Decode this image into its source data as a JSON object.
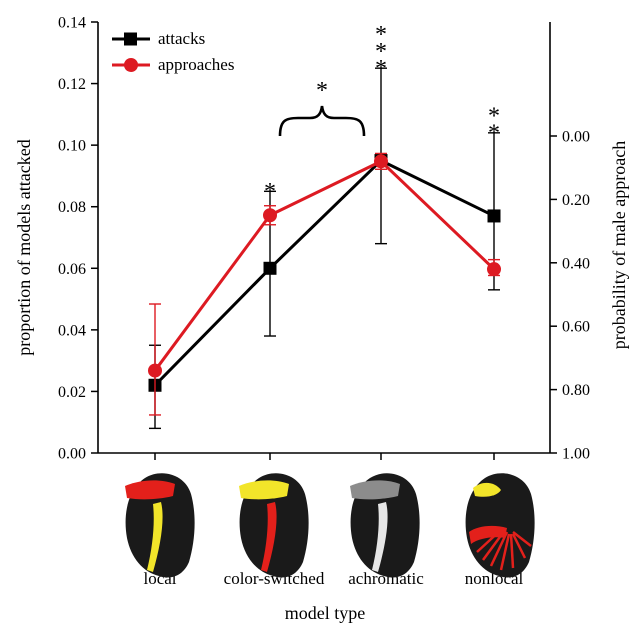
{
  "chart_data": {
    "type": "line",
    "categories": [
      "local",
      "color-switched",
      "achromatic",
      "nonlocal"
    ],
    "xlabel": "model type",
    "ylabel": "proportion of models attacked",
    "y2label": "probability of male approach",
    "ylim": [
      0,
      0.14
    ],
    "yticks": [
      "0.00",
      "0.02",
      "0.04",
      "0.06",
      "0.08",
      "0.10",
      "0.12",
      "0.14"
    ],
    "y2lim": [
      1.0,
      0.0
    ],
    "y2ticks": [
      "1.00",
      "0.80",
      "0.60",
      "0.40",
      "0.20",
      "0.00"
    ],
    "legend_position": "top-left",
    "series": [
      {
        "name": "attacks",
        "color": "#000000",
        "marker": "square",
        "axis": "left",
        "values": [
          0.022,
          0.06,
          0.095,
          0.077
        ],
        "err_low": [
          0.008,
          0.038,
          0.068,
          0.053
        ],
        "err_high": [
          0.035,
          0.085,
          0.125,
          0.104
        ]
      },
      {
        "name": "approaches",
        "color": "#dd1a22",
        "marker": "circle",
        "axis": "right",
        "values": [
          0.74,
          0.25,
          0.08,
          0.42
        ],
        "err_low": [
          0.88,
          0.28,
          0.105,
          0.44
        ],
        "err_high": [
          0.53,
          0.22,
          0.055,
          0.39
        ]
      }
    ],
    "annotations": [
      {
        "text": "*",
        "category": 1,
        "value": 0.087
      },
      {
        "text": "***",
        "category": 2,
        "value": 0.127
      },
      {
        "text": "**",
        "category": 3,
        "value": 0.106
      },
      {
        "text": "*",
        "between": [
          1,
          2
        ],
        "value": 0.102
      }
    ],
    "wing_icons": [
      {
        "category": "local",
        "forewing_band": "#e3201b",
        "hindwing_band": "#f2e52a"
      },
      {
        "category": "color-switched",
        "forewing_band": "#f2e52a",
        "hindwing_band": "#e3201b"
      },
      {
        "category": "achromatic",
        "forewing_band": "#8c8c8c",
        "hindwing_band": "#e6e6e6"
      },
      {
        "category": "nonlocal",
        "forewing_band": "#f2e52a",
        "hindwing_band": "#e3201b"
      }
    ]
  }
}
